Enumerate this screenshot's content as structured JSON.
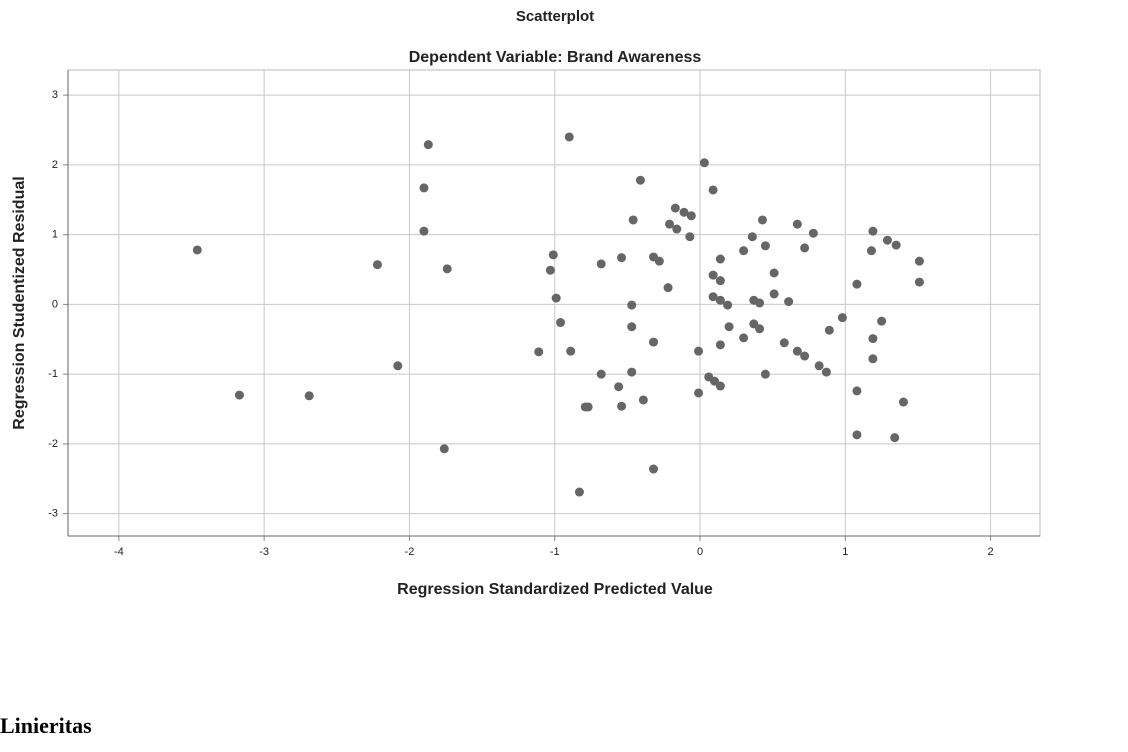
{
  "chart_data": {
    "type": "scatter",
    "title": "Scatterplot",
    "subtitle": "Dependent Variable: Brand Awareness",
    "xlabel": "Regression Standardized Predicted Value",
    "ylabel": "Regression Studentized Residual",
    "color": "#666666",
    "grid": true,
    "xlim": [
      -4.35,
      2.34
    ],
    "ylim": [
      -3.32,
      3.36
    ],
    "xticks": [
      -4,
      -3,
      -2,
      -1,
      0,
      1,
      2
    ],
    "yticks": [
      -3,
      -2,
      -1,
      0,
      1,
      2,
      3
    ],
    "x": [
      -3.46,
      -3.17,
      -2.69,
      -2.22,
      -2.08,
      -1.87,
      -1.9,
      -1.9,
      -1.74,
      -1.76,
      -0.9,
      -1.01,
      -0.99,
      -0.96,
      -1.11,
      -0.89,
      -1.03,
      -0.83,
      -0.68,
      -0.68,
      -0.77,
      -0.79,
      -0.54,
      -0.56,
      -0.54,
      -0.41,
      -0.46,
      -0.47,
      -0.47,
      -0.47,
      -0.39,
      -0.32,
      -0.28,
      -0.32,
      -0.32,
      -0.22,
      -0.21,
      -0.16,
      -0.17,
      -0.11,
      -0.06,
      -0.07,
      -0.01,
      -0.01,
      0.03,
      0.09,
      0.09,
      0.14,
      0.14,
      0.09,
      0.14,
      0.19,
      0.06,
      0.1,
      0.14,
      0.14,
      0.2,
      0.3,
      0.3,
      0.36,
      0.37,
      0.41,
      0.37,
      0.41,
      0.43,
      0.45,
      0.51,
      0.51,
      0.45,
      0.58,
      0.61,
      0.67,
      0.67,
      0.72,
      0.72,
      0.78,
      0.82,
      0.87,
      0.89,
      0.98,
      1.08,
      1.08,
      1.08,
      1.19,
      1.18,
      1.19,
      1.19,
      1.25,
      1.29,
      1.35,
      1.34,
      1.4,
      1.51,
      1.51
    ],
    "values": [
      0.78,
      -1.3,
      -1.31,
      0.57,
      -0.88,
      2.29,
      1.67,
      1.05,
      0.51,
      -2.07,
      2.4,
      0.71,
      0.09,
      -0.26,
      -0.68,
      -0.67,
      0.49,
      -2.69,
      0.58,
      -1.0,
      -1.47,
      -1.47,
      0.67,
      -1.18,
      -1.46,
      1.78,
      1.21,
      -0.01,
      -0.32,
      -0.97,
      -1.37,
      0.68,
      0.62,
      -0.54,
      -2.36,
      0.24,
      1.15,
      1.08,
      1.38,
      1.32,
      1.27,
      0.97,
      -0.67,
      -1.27,
      2.03,
      1.64,
      0.42,
      0.34,
      0.65,
      0.11,
      0.06,
      -0.01,
      -1.04,
      -1.1,
      -1.17,
      -0.58,
      -0.32,
      0.77,
      -0.48,
      0.97,
      0.06,
      0.02,
      -0.28,
      -0.35,
      1.21,
      0.84,
      0.45,
      0.15,
      -1.0,
      -0.55,
      0.04,
      1.15,
      -0.67,
      -0.74,
      0.81,
      1.02,
      -0.88,
      -0.97,
      -0.37,
      -0.19,
      0.29,
      -1.24,
      -1.87,
      1.05,
      0.77,
      -0.49,
      -0.78,
      -0.24,
      0.92,
      0.85,
      -1.91,
      -1.4,
      0.62,
      0.32
    ]
  },
  "heading": "Linieritas"
}
